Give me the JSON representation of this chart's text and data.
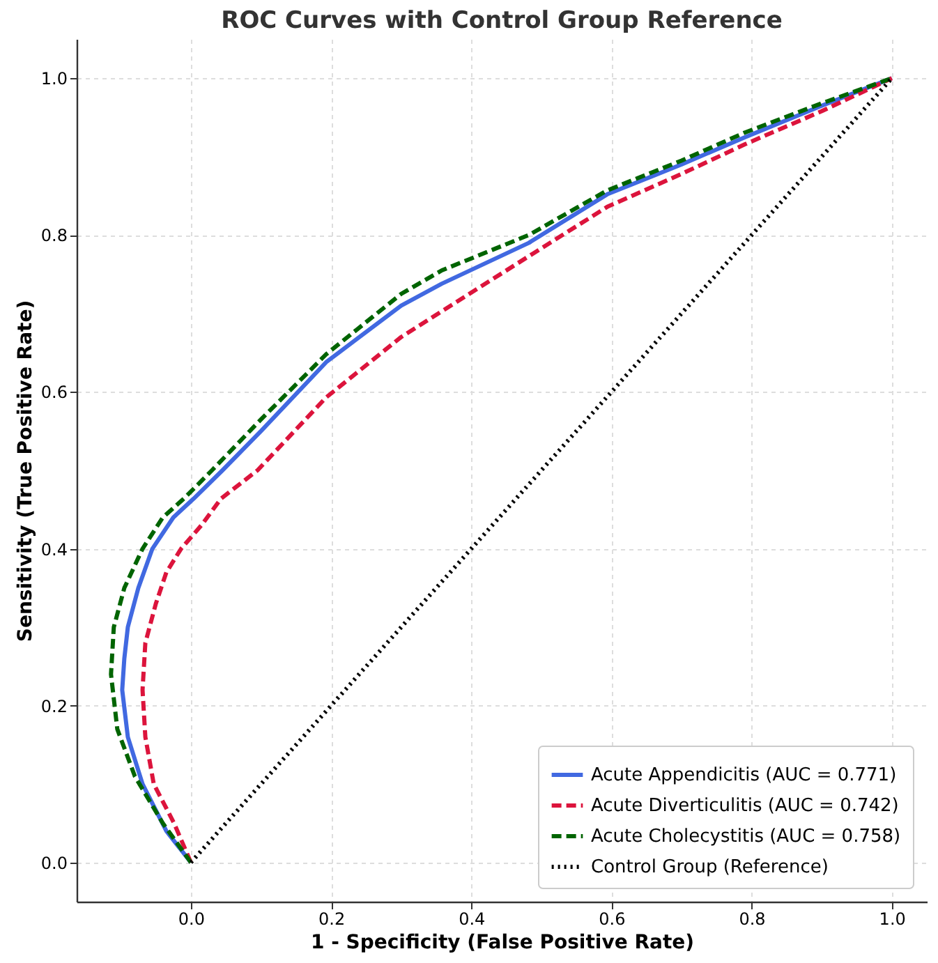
{
  "chart_data": {
    "type": "line",
    "title": "ROC Curves with Control Group Reference",
    "xlabel": "1 - Specificity (False Positive Rate)",
    "ylabel": "Sensitivity (True Positive Rate)",
    "xlim": [
      -0.163,
      1.05
    ],
    "ylim": [
      -0.05,
      1.05
    ],
    "xticks": [
      {
        "value": 0,
        "label": "0.0"
      },
      0.2,
      0.4,
      0.6,
      0.8,
      {
        "value": 1,
        "label": "1.0"
      }
    ],
    "yticks": [
      {
        "value": 0,
        "label": "0.0"
      },
      0.2,
      0.4,
      0.6,
      0.8,
      {
        "value": 1,
        "label": "1.0"
      }
    ],
    "grid": true,
    "legend": "bottom right",
    "series": [
      {
        "name": "Acute Appendicitis (AUC = 0.771)",
        "color": "#4169e1",
        "line_style": "solid",
        "x": [
          0,
          -0.035,
          -0.069,
          -0.09,
          -0.098,
          -0.095,
          -0.09,
          -0.075,
          -0.055,
          -0.025,
          0.004,
          0.045,
          0.1,
          0.193,
          0.3,
          0.358,
          0.482,
          0.594,
          0.7,
          0.791,
          0.9,
          1
        ],
        "values": [
          0,
          0.04,
          0.1,
          0.16,
          0.22,
          0.26,
          0.3,
          0.35,
          0.4,
          0.44,
          0.464,
          0.5,
          0.55,
          0.638,
          0.71,
          0.738,
          0.79,
          0.852,
          0.89,
          0.925,
          0.965,
          1
        ]
      },
      {
        "name": "Acute Diverticulitis (AUC = 0.742)",
        "color": "#dc143c",
        "line_style": "dashed",
        "x": [
          0,
          -0.024,
          -0.053,
          -0.065,
          -0.069,
          -0.065,
          -0.05,
          -0.035,
          -0.014,
          0.015,
          0.043,
          0.095,
          0.193,
          0.3,
          0.482,
          0.594,
          0.7,
          0.791,
          0.9,
          1
        ],
        "values": [
          0,
          0.05,
          0.1,
          0.16,
          0.22,
          0.28,
          0.33,
          0.37,
          0.4,
          0.43,
          0.464,
          0.5,
          0.593,
          0.67,
          0.773,
          0.836,
          0.878,
          0.916,
          0.958,
          1
        ]
      },
      {
        "name": "Acute Cholecystitis (AUC = 0.758)",
        "color": "#006400",
        "line_style": "dashed",
        "x": [
          0,
          -0.04,
          -0.08,
          -0.105,
          -0.114,
          -0.11,
          -0.095,
          -0.069,
          -0.04,
          -0.01,
          0.03,
          0.1,
          0.193,
          0.3,
          0.358,
          0.482,
          0.594,
          0.7,
          0.791,
          0.9,
          1
        ],
        "values": [
          0,
          0.05,
          0.11,
          0.17,
          0.24,
          0.3,
          0.35,
          0.4,
          0.44,
          0.464,
          0.5,
          0.565,
          0.648,
          0.725,
          0.755,
          0.8,
          0.857,
          0.895,
          0.931,
          0.968,
          1
        ]
      },
      {
        "name": "Control Group (Reference)",
        "color": "#000000",
        "line_style": "dotted",
        "x": [
          0,
          1
        ],
        "values": [
          0,
          1
        ]
      }
    ]
  }
}
